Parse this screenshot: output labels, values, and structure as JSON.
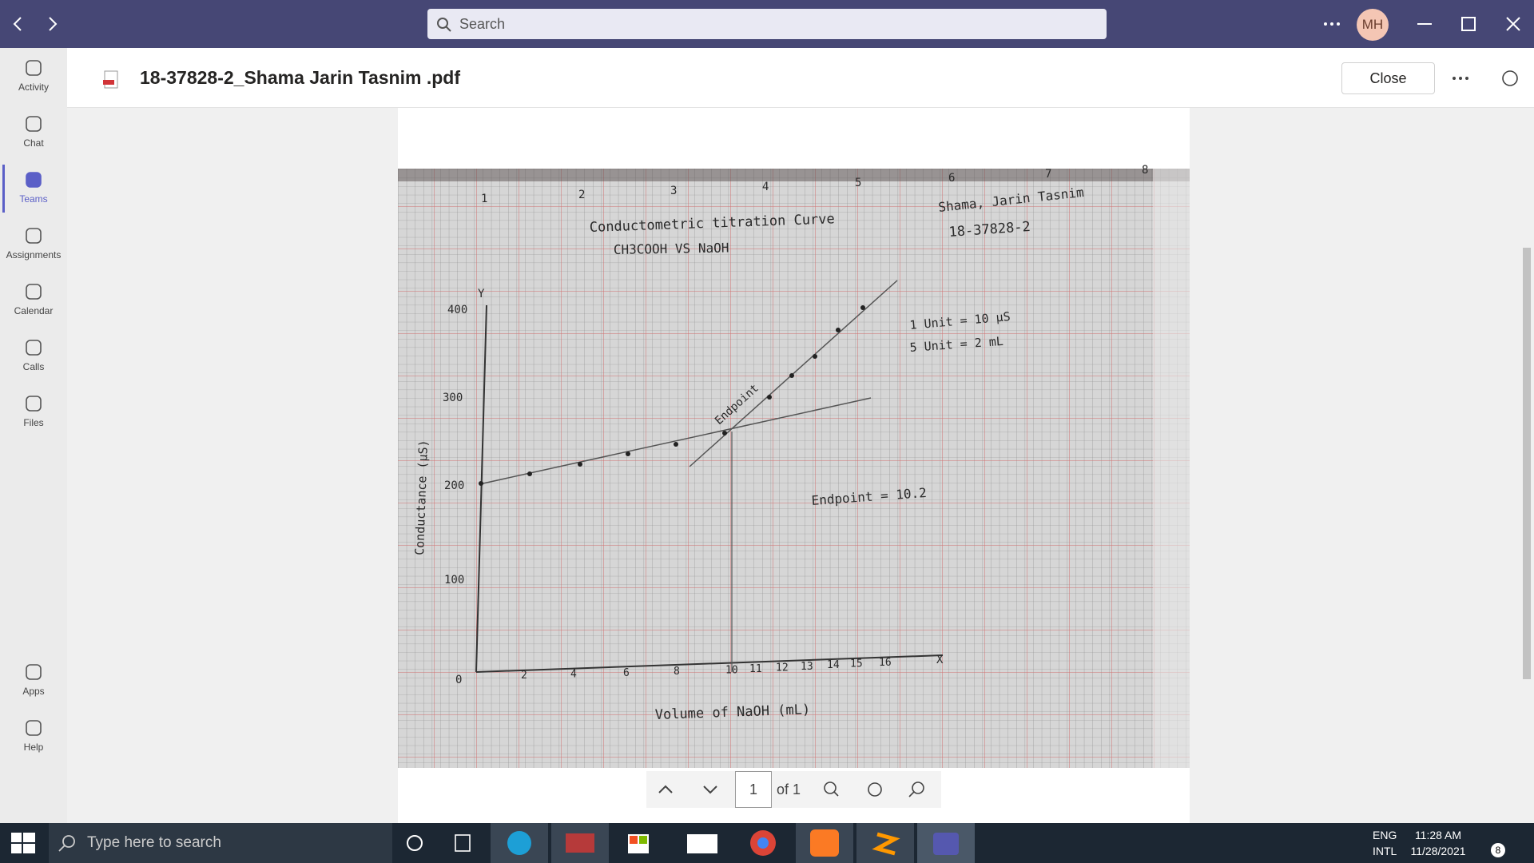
{
  "window": {
    "search_placeholder": "Search",
    "avatar": "MH"
  },
  "rail": {
    "items": [
      "Activity",
      "Chat",
      "Teams",
      "Assignments",
      "Calendar",
      "Calls",
      "Files"
    ],
    "bottom": [
      "Apps",
      "Help"
    ]
  },
  "file": {
    "title": "18-37828-2_Shama Jarin Tasnim .pdf",
    "close": "Close"
  },
  "document": {
    "ruler": [
      "1",
      "2",
      "3",
      "4",
      "5",
      "6",
      "7",
      "8"
    ],
    "title": "Conductometric titration Curve",
    "subtitle": "CH3COOH VS NaOH",
    "author": "Shama, Jarin Tasnim",
    "id": "18-37828-2",
    "scale": [
      "1 Unit = 10 µS",
      "5 Unit = 2 mL"
    ],
    "endpoint_label": "Endpoint",
    "result": "Endpoint = 10.2",
    "y_axis": "Conductance (µS)",
    "x_axis": "Volume of NaOH (mL)",
    "y_letter": "Y",
    "x_letter": "X",
    "yticks": [
      "0",
      "100",
      "200",
      "300",
      "400"
    ],
    "xticks": [
      "2",
      "4",
      "6",
      "8",
      "10",
      "11",
      "12",
      "13",
      "14",
      "15",
      "16"
    ]
  },
  "viewer": {
    "page": "1",
    "of": "of 1"
  },
  "taskbar": {
    "search": "Type here to search",
    "lang": [
      "ENG",
      "INTL"
    ],
    "time": "11:28 AM",
    "date": "11/28/2021",
    "notifications": "8"
  }
}
